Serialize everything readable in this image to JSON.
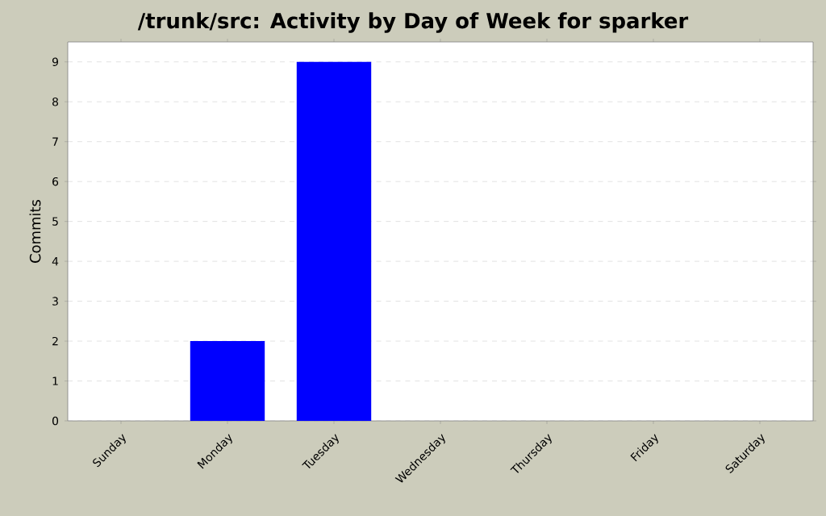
{
  "chart_data": {
    "type": "bar",
    "title": "/trunk/src: Activity by Day of Week for sparker",
    "ylabel": "Commits",
    "categories": [
      "Sunday",
      "Monday",
      "Tuesday",
      "Wednesday",
      "Thursday",
      "Friday",
      "Saturday"
    ],
    "values": [
      0,
      2,
      9,
      0,
      0,
      0,
      0
    ],
    "color": "#0000ff",
    "ylim": [
      0,
      9.5
    ],
    "yticks": [
      0,
      1,
      2,
      3,
      4,
      5,
      6,
      7,
      8,
      9
    ],
    "grid": "y"
  }
}
